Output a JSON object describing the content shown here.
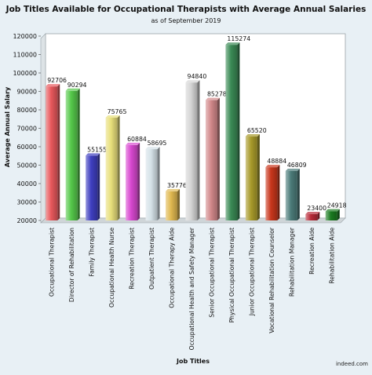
{
  "chart_data": {
    "type": "bar",
    "title": "Job Titles Available for Occupational Therapists with Average Annual Salaries",
    "subtitle": "as of September 2019",
    "xlabel": "Job Titles",
    "ylabel": "Average Annual Salary",
    "ylim": [
      20000,
      120000
    ],
    "yticks": [
      20000,
      30000,
      40000,
      50000,
      60000,
      70000,
      80000,
      90000,
      100000,
      110000,
      120000
    ],
    "grid": false,
    "legend": "none",
    "categories": [
      "Occupational Therapist",
      "Director of Rehabilitation",
      "Family Therapist",
      "Occupational Health Nurse",
      "Recreation Therapist",
      "Outpatient Therapist",
      "Occupational Therapy Aide",
      "Occupational Health and Safety Manager",
      "Senior Occupational Therapist",
      "Physical Occupational Therapist",
      "Junior Occupational Therapist",
      "Vocational Rehabilitation Counselor",
      "Rehabilitation Manager",
      "Recreation Aide",
      "Rehabilitation Aide"
    ],
    "values": [
      92706,
      90294,
      55155,
      75765,
      60884,
      58695,
      35776,
      94840,
      85278,
      115274,
      65520,
      48884,
      46809,
      23400,
      24918
    ],
    "value_labels": [
      "92706",
      "90294",
      "55155",
      "75765",
      "60884",
      "58695",
      "35776",
      "94840",
      "85278",
      "115274",
      "65520",
      "48884",
      "46809",
      "23400",
      "24918"
    ],
    "colors": [
      "#e8585c",
      "#55c84a",
      "#3f3fc0",
      "#e8df7a",
      "#d848d0",
      "#d5e2e8",
      "#e0b850",
      "#d5d5d5",
      "#d2888a",
      "#3a8a55",
      "#a89a2a",
      "#c8361c",
      "#4a7a78",
      "#b82a38",
      "#1a7a20"
    ],
    "source": "indeed.com"
  }
}
